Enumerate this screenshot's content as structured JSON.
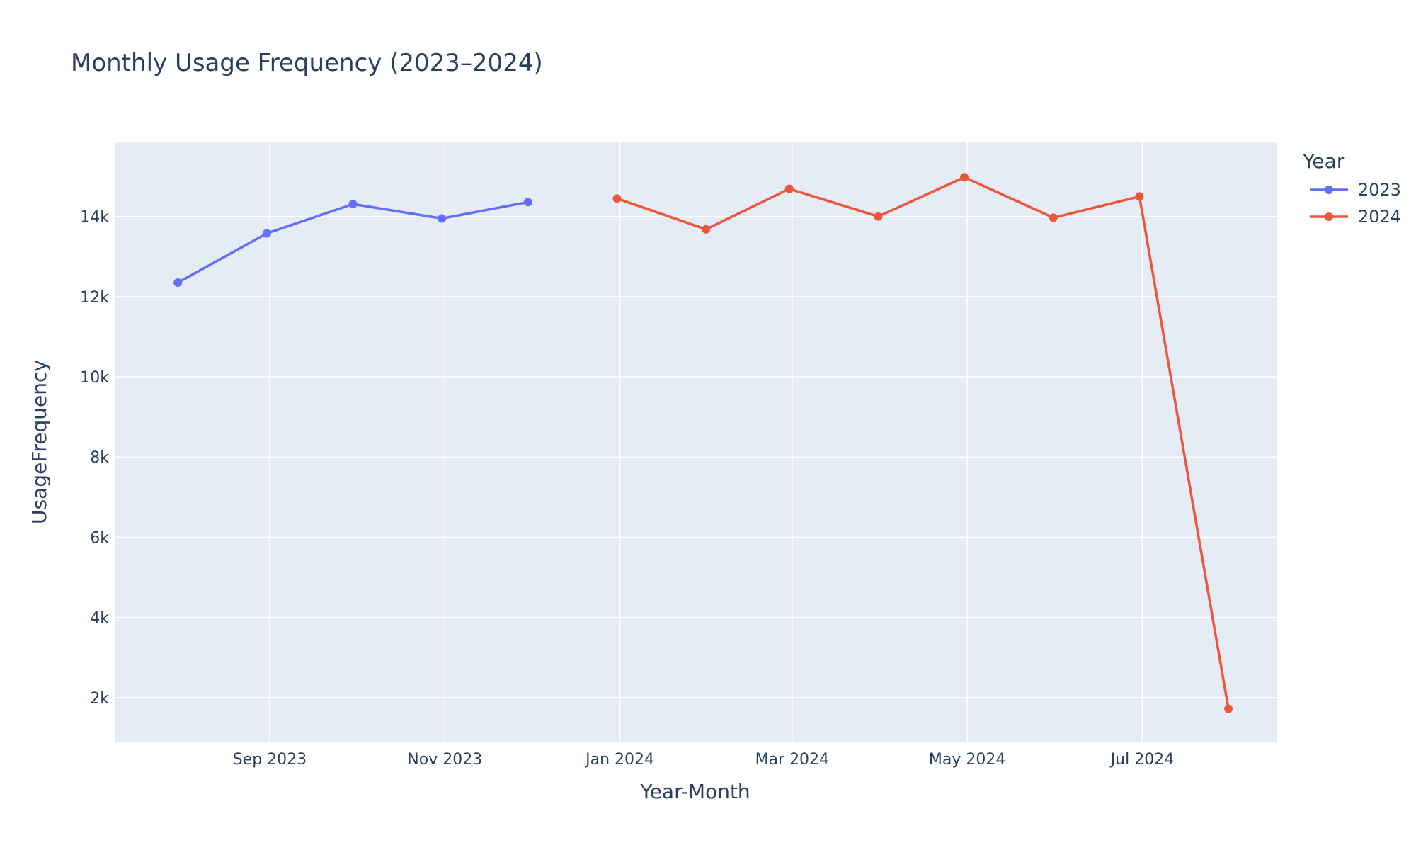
{
  "chart_data": {
    "type": "line",
    "title": "Monthly Usage Frequency (2023–2024)",
    "xlabel": "Year-Month",
    "ylabel": "UsageFrequency",
    "x_range": [
      "2023-07-09",
      "2024-08-17"
    ],
    "ylim": [
      900,
      15850
    ],
    "x_ticks": [
      {
        "date": "2023-09-01",
        "label": "Sep 2023"
      },
      {
        "date": "2023-11-01",
        "label": "Nov 2023"
      },
      {
        "date": "2024-01-01",
        "label": "Jan 2024"
      },
      {
        "date": "2024-03-01",
        "label": "Mar 2024"
      },
      {
        "date": "2024-05-01",
        "label": "May 2024"
      },
      {
        "date": "2024-07-01",
        "label": "Jul 2024"
      }
    ],
    "y_ticks": [
      {
        "value": 2000,
        "label": "2k"
      },
      {
        "value": 4000,
        "label": "4k"
      },
      {
        "value": 6000,
        "label": "6k"
      },
      {
        "value": 8000,
        "label": "8k"
      },
      {
        "value": 10000,
        "label": "10k"
      },
      {
        "value": 12000,
        "label": "12k"
      },
      {
        "value": 14000,
        "label": "14k"
      }
    ],
    "grid": true,
    "legend": {
      "title": "Year",
      "position": "top-right"
    },
    "series": [
      {
        "name": "2023",
        "color": "#636efa",
        "x": [
          "2023-07-31",
          "2023-08-31",
          "2023-09-30",
          "2023-10-31",
          "2023-11-30"
        ],
        "y": [
          12350,
          13580,
          14310,
          13950,
          14360
        ]
      },
      {
        "name": "2024",
        "color": "#ef553b",
        "x": [
          "2023-12-31",
          "2024-01-31",
          "2024-02-29",
          "2024-03-31",
          "2024-04-30",
          "2024-05-31",
          "2024-06-30",
          "2024-07-31"
        ],
        "y": [
          14450,
          13680,
          14690,
          14000,
          14980,
          13970,
          14500,
          1720
        ]
      }
    ]
  },
  "colors": {
    "plot_background": "#e5ecf6",
    "grid": "#ffffff",
    "text": "#2a3f5f"
  }
}
